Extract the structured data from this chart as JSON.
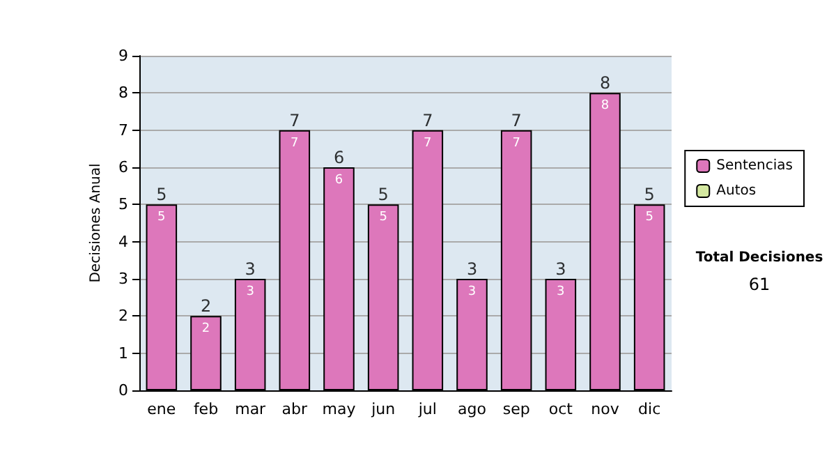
{
  "chart_data": {
    "type": "bar",
    "ylabel": "Decisiones Anual",
    "categories": [
      "ene",
      "feb",
      "mar",
      "abr",
      "may",
      "jun",
      "jul",
      "ago",
      "sep",
      "oct",
      "nov",
      "dic"
    ],
    "series": [
      {
        "name": "Sentencias",
        "color": "#dd77bb",
        "values": [
          5,
          2,
          3,
          7,
          6,
          5,
          7,
          3,
          7,
          3,
          8,
          5
        ],
        "value_labels": [
          "5",
          "2",
          "3",
          "7",
          "6",
          "5",
          "7",
          "3",
          "7",
          "3",
          "8",
          "5"
        ]
      },
      {
        "name": "Autos",
        "color": "#d4e8a0",
        "values": [
          0,
          0,
          0,
          0,
          0,
          0,
          0,
          0,
          0,
          0,
          0,
          0
        ]
      }
    ],
    "stacked": true,
    "totals": [
      "5",
      "2",
      "3",
      "7",
      "6",
      "5",
      "7",
      "3",
      "7",
      "3",
      "8",
      "5"
    ],
    "ylim": [
      0,
      9
    ],
    "yticks": [
      0,
      1,
      2,
      3,
      4,
      5,
      6,
      7,
      8,
      9
    ],
    "grid": "y",
    "legend": "right",
    "annotations": [
      "Total Decisiones",
      "61"
    ]
  }
}
